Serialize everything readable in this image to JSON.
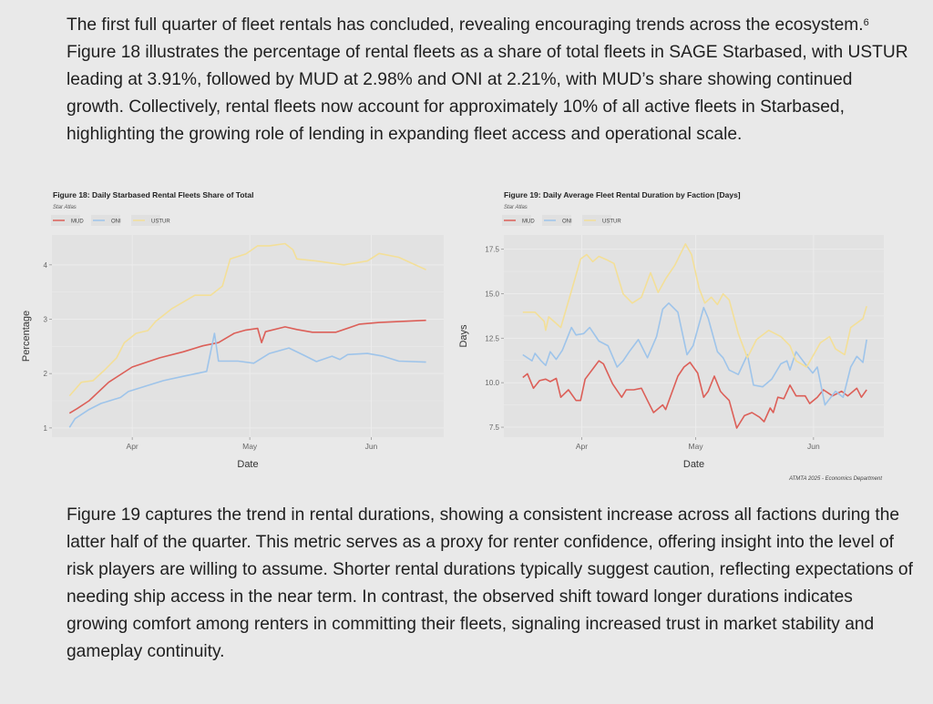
{
  "paragraph1": {
    "text_a": "The first full quarter of fleet rentals has concluded, revealing encouraging trends across the ecosystem.",
    "footnote": "6",
    "text_b": " Figure 18 illustrates the percentage of rental fleets as a share of total fleets in SAGE Starbased, with USTUR leading at 3.91%, followed by MUD at 2.98% and ONI at 2.21%, with MUD’s share showing continued growth. Collectively, rental fleets now account for approximately 10% of all active fleets in Starbased, highlighting the growing role of lending in expanding fleet access and operational scale."
  },
  "paragraph2": {
    "text": "Figure 19 captures the trend in rental durations, showing a consistent increase across all factions during the latter half of the quarter. This metric serves as a proxy for renter confidence, offering insight into the level of risk players are willing to assume. Shorter rental durations typically suggest caution, reflecting expectations of needing ship access in the near term. In contrast, the observed shift toward longer durations indicates growing comfort among renters in committing their fleets, signaling increased trust in market stability and gameplay continuity."
  },
  "colors": {
    "MUD": "#dc5f58",
    "ONI": "#9ec4ea",
    "USTUR": "#f3df98",
    "panel": "#e2e2e2",
    "grid": "#ececec"
  },
  "chart_data": [
    {
      "type": "line",
      "title": "Figure 18: Daily Starbased Rental Fleets Share of Total",
      "subtitle": "Star Atlas",
      "xlabel": "Date",
      "ylabel": "Percentage",
      "x_unit": "days since Mar 1",
      "xlim": [
        10.5,
        110.5
      ],
      "ylim": [
        0.83,
        4.55
      ],
      "x_ticks": [
        {
          "value": 31,
          "label": "Apr"
        },
        {
          "value": 61,
          "label": "May"
        },
        {
          "value": 92,
          "label": "Jun"
        }
      ],
      "y_ticks": [
        {
          "value": 1,
          "label": "1"
        },
        {
          "value": 2,
          "label": "2"
        },
        {
          "value": 3,
          "label": "3"
        },
        {
          "value": 4,
          "label": "4"
        }
      ],
      "legend": "top-left",
      "grid": true,
      "series": [
        {
          "name": "MUD",
          "points": [
            [
              15,
              1.27
            ],
            [
              17,
              1.36
            ],
            [
              20,
              1.5
            ],
            [
              25,
              1.84
            ],
            [
              31,
              2.12
            ],
            [
              38,
              2.29
            ],
            [
              44,
              2.4
            ],
            [
              49,
              2.51
            ],
            [
              53,
              2.57
            ],
            [
              57,
              2.74
            ],
            [
              60,
              2.8
            ],
            [
              63,
              2.83
            ],
            [
              64,
              2.57
            ],
            [
              65,
              2.77
            ],
            [
              70,
              2.86
            ],
            [
              73,
              2.81
            ],
            [
              77,
              2.76
            ],
            [
              83,
              2.76
            ],
            [
              89,
              2.91
            ],
            [
              94,
              2.94
            ],
            [
              106,
              2.98
            ]
          ]
        },
        {
          "name": "ONI",
          "points": [
            [
              15,
              1.01
            ],
            [
              16.4,
              1.17
            ],
            [
              20,
              1.34
            ],
            [
              23,
              1.45
            ],
            [
              28,
              1.56
            ],
            [
              30,
              1.67
            ],
            [
              34,
              1.76
            ],
            [
              39,
              1.87
            ],
            [
              44,
              1.95
            ],
            [
              50,
              2.04
            ],
            [
              52,
              2.74
            ],
            [
              53,
              2.23
            ],
            [
              58,
              2.23
            ],
            [
              62,
              2.19
            ],
            [
              66,
              2.37
            ],
            [
              71,
              2.47
            ],
            [
              75,
              2.33
            ],
            [
              78,
              2.22
            ],
            [
              82,
              2.32
            ],
            [
              84,
              2.26
            ],
            [
              86,
              2.35
            ],
            [
              91,
              2.37
            ],
            [
              95,
              2.32
            ],
            [
              99,
              2.23
            ],
            [
              106,
              2.21
            ]
          ]
        },
        {
          "name": "USTUR",
          "points": [
            [
              15,
              1.59
            ],
            [
              18,
              1.84
            ],
            [
              21,
              1.87
            ],
            [
              24,
              2.07
            ],
            [
              27,
              2.29
            ],
            [
              29,
              2.57
            ],
            [
              32,
              2.74
            ],
            [
              35,
              2.79
            ],
            [
              37,
              2.96
            ],
            [
              41,
              3.19
            ],
            [
              47,
              3.44
            ],
            [
              51,
              3.44
            ],
            [
              54,
              3.61
            ],
            [
              56,
              4.11
            ],
            [
              60,
              4.2
            ],
            [
              63,
              4.35
            ],
            [
              66,
              4.35
            ],
            [
              70,
              4.39
            ],
            [
              72,
              4.28
            ],
            [
              73,
              4.11
            ],
            [
              78,
              4.07
            ],
            [
              85,
              4.0
            ],
            [
              91,
              4.07
            ],
            [
              94,
              4.21
            ],
            [
              99,
              4.14
            ],
            [
              106,
              3.91
            ]
          ]
        }
      ]
    },
    {
      "type": "line",
      "title": "Figure 19: Daily Average Fleet Rental Duration by Faction [Days]",
      "subtitle": "Star Atlas",
      "xlabel": "Date",
      "ylabel": "Days",
      "caption": "ATMTA 2025 - Economics Department",
      "x_unit": "days since Mar 1",
      "xlim": [
        10.5,
        110.5
      ],
      "ylim": [
        6.94,
        18.3
      ],
      "x_ticks": [
        {
          "value": 31,
          "label": "Apr"
        },
        {
          "value": 61,
          "label": "May"
        },
        {
          "value": 92,
          "label": "Jun"
        }
      ],
      "y_ticks": [
        {
          "value": 7.5,
          "label": "7.5"
        },
        {
          "value": 10,
          "label": "10.0"
        },
        {
          "value": 12.5,
          "label": "12.5"
        },
        {
          "value": 15,
          "label": "15.0"
        },
        {
          "value": 17.5,
          "label": "17.5"
        }
      ],
      "legend": "top-left",
      "grid": true,
      "series": [
        {
          "name": "MUD",
          "points": [
            [
              15.5,
              10.29
            ],
            [
              16.7,
              10.5
            ],
            [
              18.3,
              9.69
            ],
            [
              19.9,
              10.12
            ],
            [
              21.5,
              10.2
            ],
            [
              22.7,
              10.06
            ],
            [
              24.3,
              10.24
            ],
            [
              25.5,
              9.18
            ],
            [
              27.5,
              9.6
            ],
            [
              29.5,
              9.0
            ],
            [
              30.7,
              9.0
            ],
            [
              31.9,
              10.2
            ],
            [
              34.3,
              10.88
            ],
            [
              35.5,
              11.23
            ],
            [
              36.7,
              11.06
            ],
            [
              39.1,
              9.94
            ],
            [
              41.5,
              9.18
            ],
            [
              42.7,
              9.6
            ],
            [
              44.7,
              9.6
            ],
            [
              46.7,
              9.69
            ],
            [
              48.3,
              9.0
            ],
            [
              49.9,
              8.32
            ],
            [
              52.3,
              8.75
            ],
            [
              53.1,
              8.49
            ],
            [
              56.3,
              10.37
            ],
            [
              57.9,
              10.88
            ],
            [
              59.5,
              11.14
            ],
            [
              61.5,
              10.54
            ],
            [
              63.1,
              9.18
            ],
            [
              64.3,
              9.52
            ],
            [
              65.9,
              10.37
            ],
            [
              67.5,
              9.52
            ],
            [
              68.2,
              9.35
            ],
            [
              69.8,
              9.0
            ],
            [
              71.8,
              7.45
            ],
            [
              73.8,
              8.15
            ],
            [
              75.8,
              8.32
            ],
            [
              77.8,
              8.06
            ],
            [
              79,
              7.81
            ],
            [
              80.6,
              8.58
            ],
            [
              81.4,
              8.32
            ],
            [
              82.6,
              9.18
            ],
            [
              84.2,
              9.1
            ],
            [
              85.8,
              9.86
            ],
            [
              87.4,
              9.26
            ],
            [
              89.8,
              9.26
            ],
            [
              91,
              8.83
            ],
            [
              93,
              9.18
            ],
            [
              94.6,
              9.6
            ],
            [
              97,
              9.26
            ],
            [
              99.4,
              9.52
            ],
            [
              101,
              9.26
            ],
            [
              103.4,
              9.69
            ],
            [
              104.6,
              9.18
            ],
            [
              106,
              9.6
            ]
          ]
        },
        {
          "name": "ONI",
          "points": [
            [
              15.5,
              11.57
            ],
            [
              17.9,
              11.23
            ],
            [
              18.7,
              11.65
            ],
            [
              20.3,
              11.23
            ],
            [
              21.5,
              10.97
            ],
            [
              22.7,
              11.74
            ],
            [
              24.3,
              11.31
            ],
            [
              25.9,
              11.82
            ],
            [
              28.3,
              13.1
            ],
            [
              29.5,
              12.68
            ],
            [
              31.5,
              12.76
            ],
            [
              33.1,
              13.1
            ],
            [
              35.5,
              12.34
            ],
            [
              37.9,
              12.08
            ],
            [
              40.3,
              10.88
            ],
            [
              41.9,
              11.23
            ],
            [
              43.5,
              11.74
            ],
            [
              45.9,
              12.42
            ],
            [
              48.3,
              11.4
            ],
            [
              50.7,
              12.59
            ],
            [
              52.3,
              14.13
            ],
            [
              53.9,
              14.47
            ],
            [
              56.3,
              13.96
            ],
            [
              58.7,
              11.57
            ],
            [
              60.3,
              12.08
            ],
            [
              63.1,
              14.22
            ],
            [
              64.3,
              13.62
            ],
            [
              66.7,
              11.74
            ],
            [
              68.2,
              11.4
            ],
            [
              69.8,
              10.71
            ],
            [
              72.2,
              10.46
            ],
            [
              74.6,
              11.57
            ],
            [
              76.2,
              9.86
            ],
            [
              78.6,
              9.77
            ],
            [
              81,
              10.2
            ],
            [
              83.4,
              11.06
            ],
            [
              85,
              11.23
            ],
            [
              85.8,
              10.71
            ],
            [
              87.4,
              11.74
            ],
            [
              89.8,
              11.06
            ],
            [
              91.8,
              10.54
            ],
            [
              93,
              10.88
            ],
            [
              95,
              8.75
            ],
            [
              97.8,
              9.52
            ],
            [
              99.8,
              9.18
            ],
            [
              101.8,
              10.88
            ],
            [
              103.4,
              11.48
            ],
            [
              105,
              11.14
            ],
            [
              106,
              12.42
            ]
          ]
        },
        {
          "name": "USTUR",
          "points": [
            [
              15.5,
              13.96
            ],
            [
              18.7,
              13.96
            ],
            [
              21.1,
              13.45
            ],
            [
              21.5,
              12.94
            ],
            [
              22.3,
              13.7
            ],
            [
              25.5,
              13.1
            ],
            [
              28.3,
              15.16
            ],
            [
              30.7,
              16.95
            ],
            [
              32.3,
              17.2
            ],
            [
              33.9,
              16.8
            ],
            [
              35.5,
              17.1
            ],
            [
              37.9,
              16.87
            ],
            [
              39.5,
              16.7
            ],
            [
              41.9,
              14.99
            ],
            [
              44.3,
              14.47
            ],
            [
              46.7,
              14.8
            ],
            [
              49.1,
              16.18
            ],
            [
              51.1,
              15.07
            ],
            [
              53.1,
              15.84
            ],
            [
              55.5,
              16.6
            ],
            [
              58.3,
              17.8
            ],
            [
              59.9,
              17.2
            ],
            [
              61.9,
              15.3
            ],
            [
              63.4,
              14.47
            ],
            [
              65.1,
              14.8
            ],
            [
              66.7,
              14.39
            ],
            [
              68.2,
              14.99
            ],
            [
              69.8,
              14.65
            ],
            [
              72.2,
              12.76
            ],
            [
              74.6,
              11.4
            ],
            [
              77,
              12.42
            ],
            [
              80.2,
              12.94
            ],
            [
              83.4,
              12.59
            ],
            [
              85.8,
              12.08
            ],
            [
              87.4,
              11.23
            ],
            [
              90.2,
              10.88
            ],
            [
              93.8,
              12.24
            ],
            [
              96.2,
              12.59
            ],
            [
              97.8,
              11.9
            ],
            [
              100.2,
              11.57
            ],
            [
              101.8,
              13.1
            ],
            [
              105,
              13.6
            ],
            [
              106,
              14.3
            ]
          ]
        }
      ]
    }
  ]
}
